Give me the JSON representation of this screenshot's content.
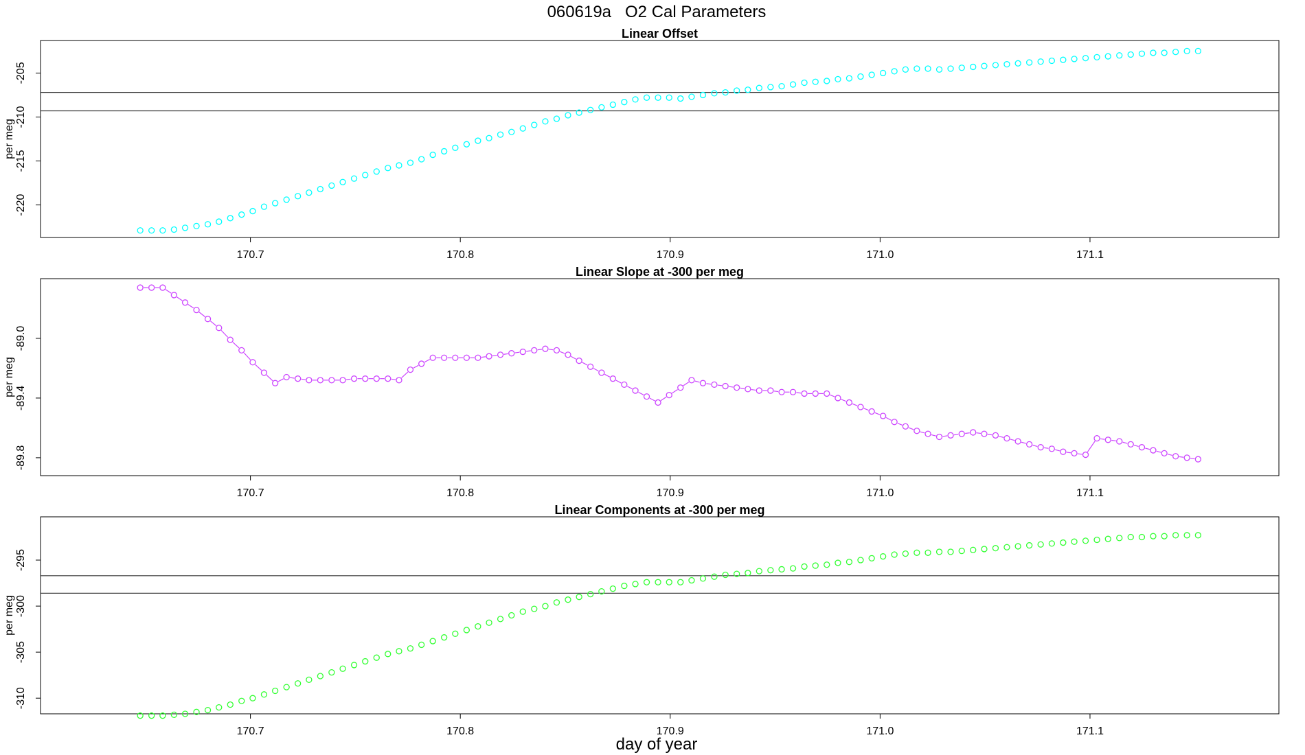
{
  "figure": {
    "title": "060619a   O2 Cal Parameters",
    "xlabel": "day of year"
  },
  "chart_data": [
    {
      "type": "scatter",
      "title": "Linear Offset",
      "ylabel": "per meg",
      "xlim": [
        170.6,
        171.19
      ],
      "ylim": [
        -223.7,
        -201.3
      ],
      "xticks": [
        "170.7",
        "170.8",
        "170.9",
        "171.0",
        "171.1"
      ],
      "yticks": [
        "-205",
        "-210",
        "-215",
        "-220"
      ],
      "color": "#00ffff",
      "connect_lines": false,
      "hlines": [
        -207.2,
        -209.3
      ],
      "series": [
        {
          "x": [
            170.6475,
            170.6529,
            170.6582,
            170.6636,
            170.6689,
            170.6743,
            170.6797,
            170.685,
            170.6904,
            170.6958,
            170.7011,
            170.7065,
            170.7118,
            170.7172,
            170.7226,
            170.7279,
            170.7333,
            170.7387,
            170.744,
            170.7494,
            170.7547,
            170.7601,
            170.7655,
            170.7708,
            170.7762,
            170.7815,
            170.7869,
            170.7923,
            170.7976,
            170.803,
            170.8084,
            170.8137,
            170.8191,
            170.8244,
            170.8298,
            170.8352,
            170.8405,
            170.8459,
            170.8513,
            170.8566,
            170.862,
            170.8673,
            170.8727,
            170.8781,
            170.8834,
            170.8888,
            170.8942,
            170.8995,
            170.9049,
            170.9102,
            170.9156,
            170.921,
            170.9263,
            170.9317,
            170.937,
            170.9424,
            170.9478,
            170.9531,
            170.9585,
            170.9639,
            170.9692,
            170.9746,
            170.9799,
            170.9853,
            170.9907,
            170.996,
            171.0014,
            171.0068,
            171.0121,
            171.0175,
            171.0228,
            171.0282,
            171.0336,
            171.0389,
            171.0443,
            171.0496,
            171.055,
            171.0604,
            171.0657,
            171.0711,
            171.0765,
            171.0818,
            171.0872,
            171.0925,
            171.0979,
            171.1033,
            171.1086,
            171.114,
            171.1194,
            171.1247,
            171.1301,
            171.1354,
            171.1408,
            171.1462,
            171.1515
          ],
          "y": [
            -222.9,
            -222.9,
            -222.9,
            -222.8,
            -222.6,
            -222.4,
            -222.2,
            -221.9,
            -221.5,
            -221.1,
            -220.7,
            -220.2,
            -219.8,
            -219.4,
            -219.0,
            -218.6,
            -218.2,
            -217.8,
            -217.4,
            -217.0,
            -216.6,
            -216.2,
            -215.8,
            -215.5,
            -215.2,
            -214.8,
            -214.3,
            -213.9,
            -213.5,
            -213.1,
            -212.7,
            -212.4,
            -212.0,
            -211.7,
            -211.3,
            -210.9,
            -210.5,
            -210.2,
            -209.8,
            -209.5,
            -209.2,
            -208.9,
            -208.6,
            -208.3,
            -208.0,
            -207.8,
            -207.8,
            -207.8,
            -207.9,
            -207.7,
            -207.5,
            -207.3,
            -207.2,
            -207.0,
            -206.9,
            -206.7,
            -206.6,
            -206.5,
            -206.3,
            -206.1,
            -206.0,
            -205.9,
            -205.7,
            -205.6,
            -205.4,
            -205.2,
            -205.0,
            -204.8,
            -204.6,
            -204.5,
            -204.5,
            -204.6,
            -204.5,
            -204.4,
            -204.3,
            -204.2,
            -204.1,
            -204.0,
            -203.9,
            -203.8,
            -203.7,
            -203.6,
            -203.5,
            -203.4,
            -203.3,
            -203.2,
            -203.1,
            -203.0,
            -202.9,
            -202.8,
            -202.7,
            -202.7,
            -202.6,
            -202.5,
            -202.5
          ]
        }
      ]
    },
    {
      "type": "line",
      "title": "Linear Slope at -300 per meg",
      "ylabel": "per meg",
      "xlim": [
        170.6,
        171.19
      ],
      "ylim": [
        -89.92,
        -88.6
      ],
      "xticks": [
        "170.7",
        "170.8",
        "170.9",
        "171.0",
        "171.1"
      ],
      "yticks": [
        "-89.0",
        "-89.4",
        "-89.8"
      ],
      "color": "#cc44ff",
      "connect_lines": true,
      "hlines": [],
      "series": [
        {
          "x": [
            170.6475,
            170.6529,
            170.6582,
            170.6636,
            170.6689,
            170.6743,
            170.6797,
            170.685,
            170.6904,
            170.6958,
            170.7011,
            170.7065,
            170.7118,
            170.7172,
            170.7226,
            170.7279,
            170.7333,
            170.7387,
            170.744,
            170.7494,
            170.7547,
            170.7601,
            170.7655,
            170.7708,
            170.7762,
            170.7815,
            170.7869,
            170.7923,
            170.7976,
            170.803,
            170.8084,
            170.8137,
            170.8191,
            170.8244,
            170.8298,
            170.8352,
            170.8405,
            170.8459,
            170.8513,
            170.8566,
            170.862,
            170.8673,
            170.8727,
            170.8781,
            170.8834,
            170.8888,
            170.8942,
            170.8995,
            170.9049,
            170.9102,
            170.9156,
            170.921,
            170.9263,
            170.9317,
            170.937,
            170.9424,
            170.9478,
            170.9531,
            170.9585,
            170.9639,
            170.9692,
            170.9746,
            170.9799,
            170.9853,
            170.9907,
            170.996,
            171.0014,
            171.0068,
            171.0121,
            171.0175,
            171.0228,
            171.0282,
            171.0336,
            171.0389,
            171.0443,
            171.0496,
            171.055,
            171.0604,
            171.0657,
            171.0711,
            171.0765,
            171.0818,
            171.0872,
            171.0925,
            171.0979,
            171.1033,
            171.1086,
            171.114,
            171.1194,
            171.1247,
            171.1301,
            171.1354,
            171.1408,
            171.1462,
            171.1515
          ],
          "y": [
            -88.66,
            -88.66,
            -88.66,
            -88.71,
            -88.76,
            -88.81,
            -88.87,
            -88.93,
            -89.01,
            -89.08,
            -89.16,
            -89.23,
            -89.3,
            -89.26,
            -89.27,
            -89.28,
            -89.28,
            -89.28,
            -89.28,
            -89.27,
            -89.27,
            -89.27,
            -89.27,
            -89.28,
            -89.21,
            -89.17,
            -89.13,
            -89.13,
            -89.13,
            -89.13,
            -89.13,
            -89.12,
            -89.11,
            -89.1,
            -89.09,
            -89.08,
            -89.07,
            -89.08,
            -89.11,
            -89.15,
            -89.19,
            -89.23,
            -89.27,
            -89.31,
            -89.35,
            -89.39,
            -89.43,
            -89.38,
            -89.33,
            -89.28,
            -89.3,
            -89.31,
            -89.32,
            -89.33,
            -89.34,
            -89.35,
            -89.35,
            -89.36,
            -89.36,
            -89.37,
            -89.37,
            -89.37,
            -89.4,
            -89.43,
            -89.46,
            -89.49,
            -89.52,
            -89.56,
            -89.59,
            -89.62,
            -89.64,
            -89.66,
            -89.65,
            -89.64,
            -89.63,
            -89.64,
            -89.65,
            -89.67,
            -89.69,
            -89.71,
            -89.73,
            -89.74,
            -89.76,
            -89.77,
            -89.78,
            -89.67,
            -89.68,
            -89.69,
            -89.71,
            -89.73,
            -89.75,
            -89.77,
            -89.79,
            -89.8,
            -89.81
          ]
        }
      ]
    },
    {
      "type": "scatter",
      "title": "Linear Components at -300 per meg",
      "ylabel": "per meg",
      "xlim": [
        170.6,
        171.19
      ],
      "ylim": [
        -311.7,
        -290.3
      ],
      "xticks": [
        "170.7",
        "170.8",
        "170.9",
        "171.0",
        "171.1"
      ],
      "yticks": [
        "-295",
        "-300",
        "-305",
        "-310"
      ],
      "color": "#33ff33",
      "connect_lines": false,
      "hlines": [
        -296.7,
        -298.6
      ],
      "series": [
        {
          "x": [
            170.6475,
            170.6529,
            170.6582,
            170.6636,
            170.6689,
            170.6743,
            170.6797,
            170.685,
            170.6904,
            170.6958,
            170.7011,
            170.7065,
            170.7118,
            170.7172,
            170.7226,
            170.7279,
            170.7333,
            170.7387,
            170.744,
            170.7494,
            170.7547,
            170.7601,
            170.7655,
            170.7708,
            170.7762,
            170.7815,
            170.7869,
            170.7923,
            170.7976,
            170.803,
            170.8084,
            170.8137,
            170.8191,
            170.8244,
            170.8298,
            170.8352,
            170.8405,
            170.8459,
            170.8513,
            170.8566,
            170.862,
            170.8673,
            170.8727,
            170.8781,
            170.8834,
            170.8888,
            170.8942,
            170.8995,
            170.9049,
            170.9102,
            170.9156,
            170.921,
            170.9263,
            170.9317,
            170.937,
            170.9424,
            170.9478,
            170.9531,
            170.9585,
            170.9639,
            170.9692,
            170.9746,
            170.9799,
            170.9853,
            170.9907,
            170.996,
            171.0014,
            171.0068,
            171.0121,
            171.0175,
            171.0228,
            171.0282,
            171.0336,
            171.0389,
            171.0443,
            171.0496,
            171.055,
            171.0604,
            171.0657,
            171.0711,
            171.0765,
            171.0818,
            171.0872,
            171.0925,
            171.0979,
            171.1033,
            171.1086,
            171.114,
            171.1194,
            171.1247,
            171.1301,
            171.1354,
            171.1408,
            171.1462,
            171.1515
          ],
          "y": [
            -311.9,
            -311.9,
            -311.9,
            -311.8,
            -311.7,
            -311.5,
            -311.3,
            -311.0,
            -310.7,
            -310.3,
            -310.0,
            -309.6,
            -309.2,
            -308.8,
            -308.4,
            -308.0,
            -307.6,
            -307.2,
            -306.8,
            -306.4,
            -306.0,
            -305.6,
            -305.2,
            -304.9,
            -304.6,
            -304.2,
            -303.8,
            -303.4,
            -303.0,
            -302.6,
            -302.2,
            -301.8,
            -301.4,
            -301.0,
            -300.6,
            -300.3,
            -300.0,
            -299.6,
            -299.3,
            -299.0,
            -298.7,
            -298.4,
            -298.1,
            -297.8,
            -297.6,
            -297.4,
            -297.4,
            -297.4,
            -297.4,
            -297.2,
            -297.0,
            -296.8,
            -296.6,
            -296.5,
            -296.4,
            -296.2,
            -296.1,
            -296.0,
            -295.9,
            -295.7,
            -295.6,
            -295.5,
            -295.3,
            -295.2,
            -295.0,
            -294.8,
            -294.6,
            -294.4,
            -294.3,
            -294.2,
            -294.2,
            -294.1,
            -294.1,
            -294.0,
            -293.9,
            -293.8,
            -293.7,
            -293.6,
            -293.5,
            -293.4,
            -293.3,
            -293.2,
            -293.1,
            -293.0,
            -292.9,
            -292.8,
            -292.7,
            -292.6,
            -292.5,
            -292.5,
            -292.4,
            -292.4,
            -292.3,
            -292.3,
            -292.3
          ]
        }
      ]
    }
  ]
}
